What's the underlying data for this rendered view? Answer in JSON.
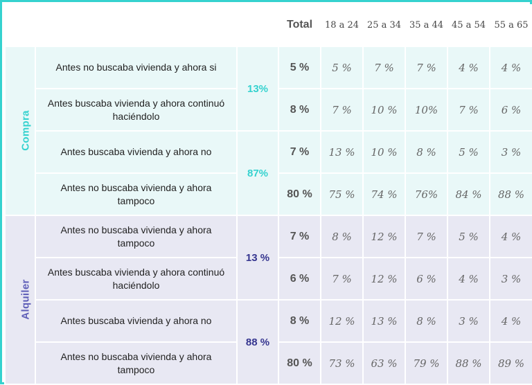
{
  "header": {
    "total": "Total",
    "ages": [
      "18 a 24",
      "25 a 34",
      "35 a 44",
      "45 a 54",
      "55 a 65"
    ]
  },
  "groups": [
    {
      "label": "Compra",
      "subtotals": [
        "13%",
        "87%"
      ],
      "rows": [
        {
          "desc": "Antes no buscaba vivienda y ahora si",
          "total": "5 %",
          "values": [
            "5 %",
            "7 %",
            "7 %",
            "4 %",
            "4 %"
          ]
        },
        {
          "desc": "Antes buscaba vivienda y ahora continuó haciéndolo",
          "total": "8 %",
          "values": [
            "7 %",
            "10 %",
            "10%",
            "7 %",
            "6 %"
          ]
        },
        {
          "desc": "Antes buscaba vivienda y ahora no",
          "total": "7 %",
          "values": [
            "13 %",
            "10 %",
            "8 %",
            "5 %",
            "3 %"
          ]
        },
        {
          "desc": "Antes no buscaba vivienda y ahora tampoco",
          "total": "80 %",
          "values": [
            "75 %",
            "74 %",
            "76%",
            "84 %",
            "88 %"
          ]
        }
      ]
    },
    {
      "label": "Alquiler",
      "subtotals": [
        "13 %",
        "88 %"
      ],
      "rows": [
        {
          "desc": "Antes no buscaba vivienda y ahora tampoco",
          "total": "7 %",
          "values": [
            "8 %",
            "12 %",
            "7 %",
            "5 %",
            "4 %"
          ]
        },
        {
          "desc": "Antes buscaba vivienda y ahora continuó haciéndolo",
          "total": "6 %",
          "values": [
            "7 %",
            "12 %",
            "6 %",
            "4 %",
            "3 %"
          ]
        },
        {
          "desc": "Antes buscaba vivienda y ahora no",
          "total": "8 %",
          "values": [
            "12 %",
            "13 %",
            "8 %",
            "3 %",
            "4 %"
          ]
        },
        {
          "desc": "Antes no buscaba vivienda y ahora tampoco",
          "total": "80 %",
          "values": [
            "73 %",
            "63 %",
            "79 %",
            "88 %",
            "89 %"
          ]
        }
      ]
    }
  ],
  "colors": {
    "border": "#35d2cf",
    "compra_bg": "#e9f8f8",
    "alquiler_bg": "#e8e8f3",
    "compra_accent": "#35d2cf",
    "alquiler_accent": "#5f5fb8",
    "alquiler_subtotal": "#35358f"
  }
}
